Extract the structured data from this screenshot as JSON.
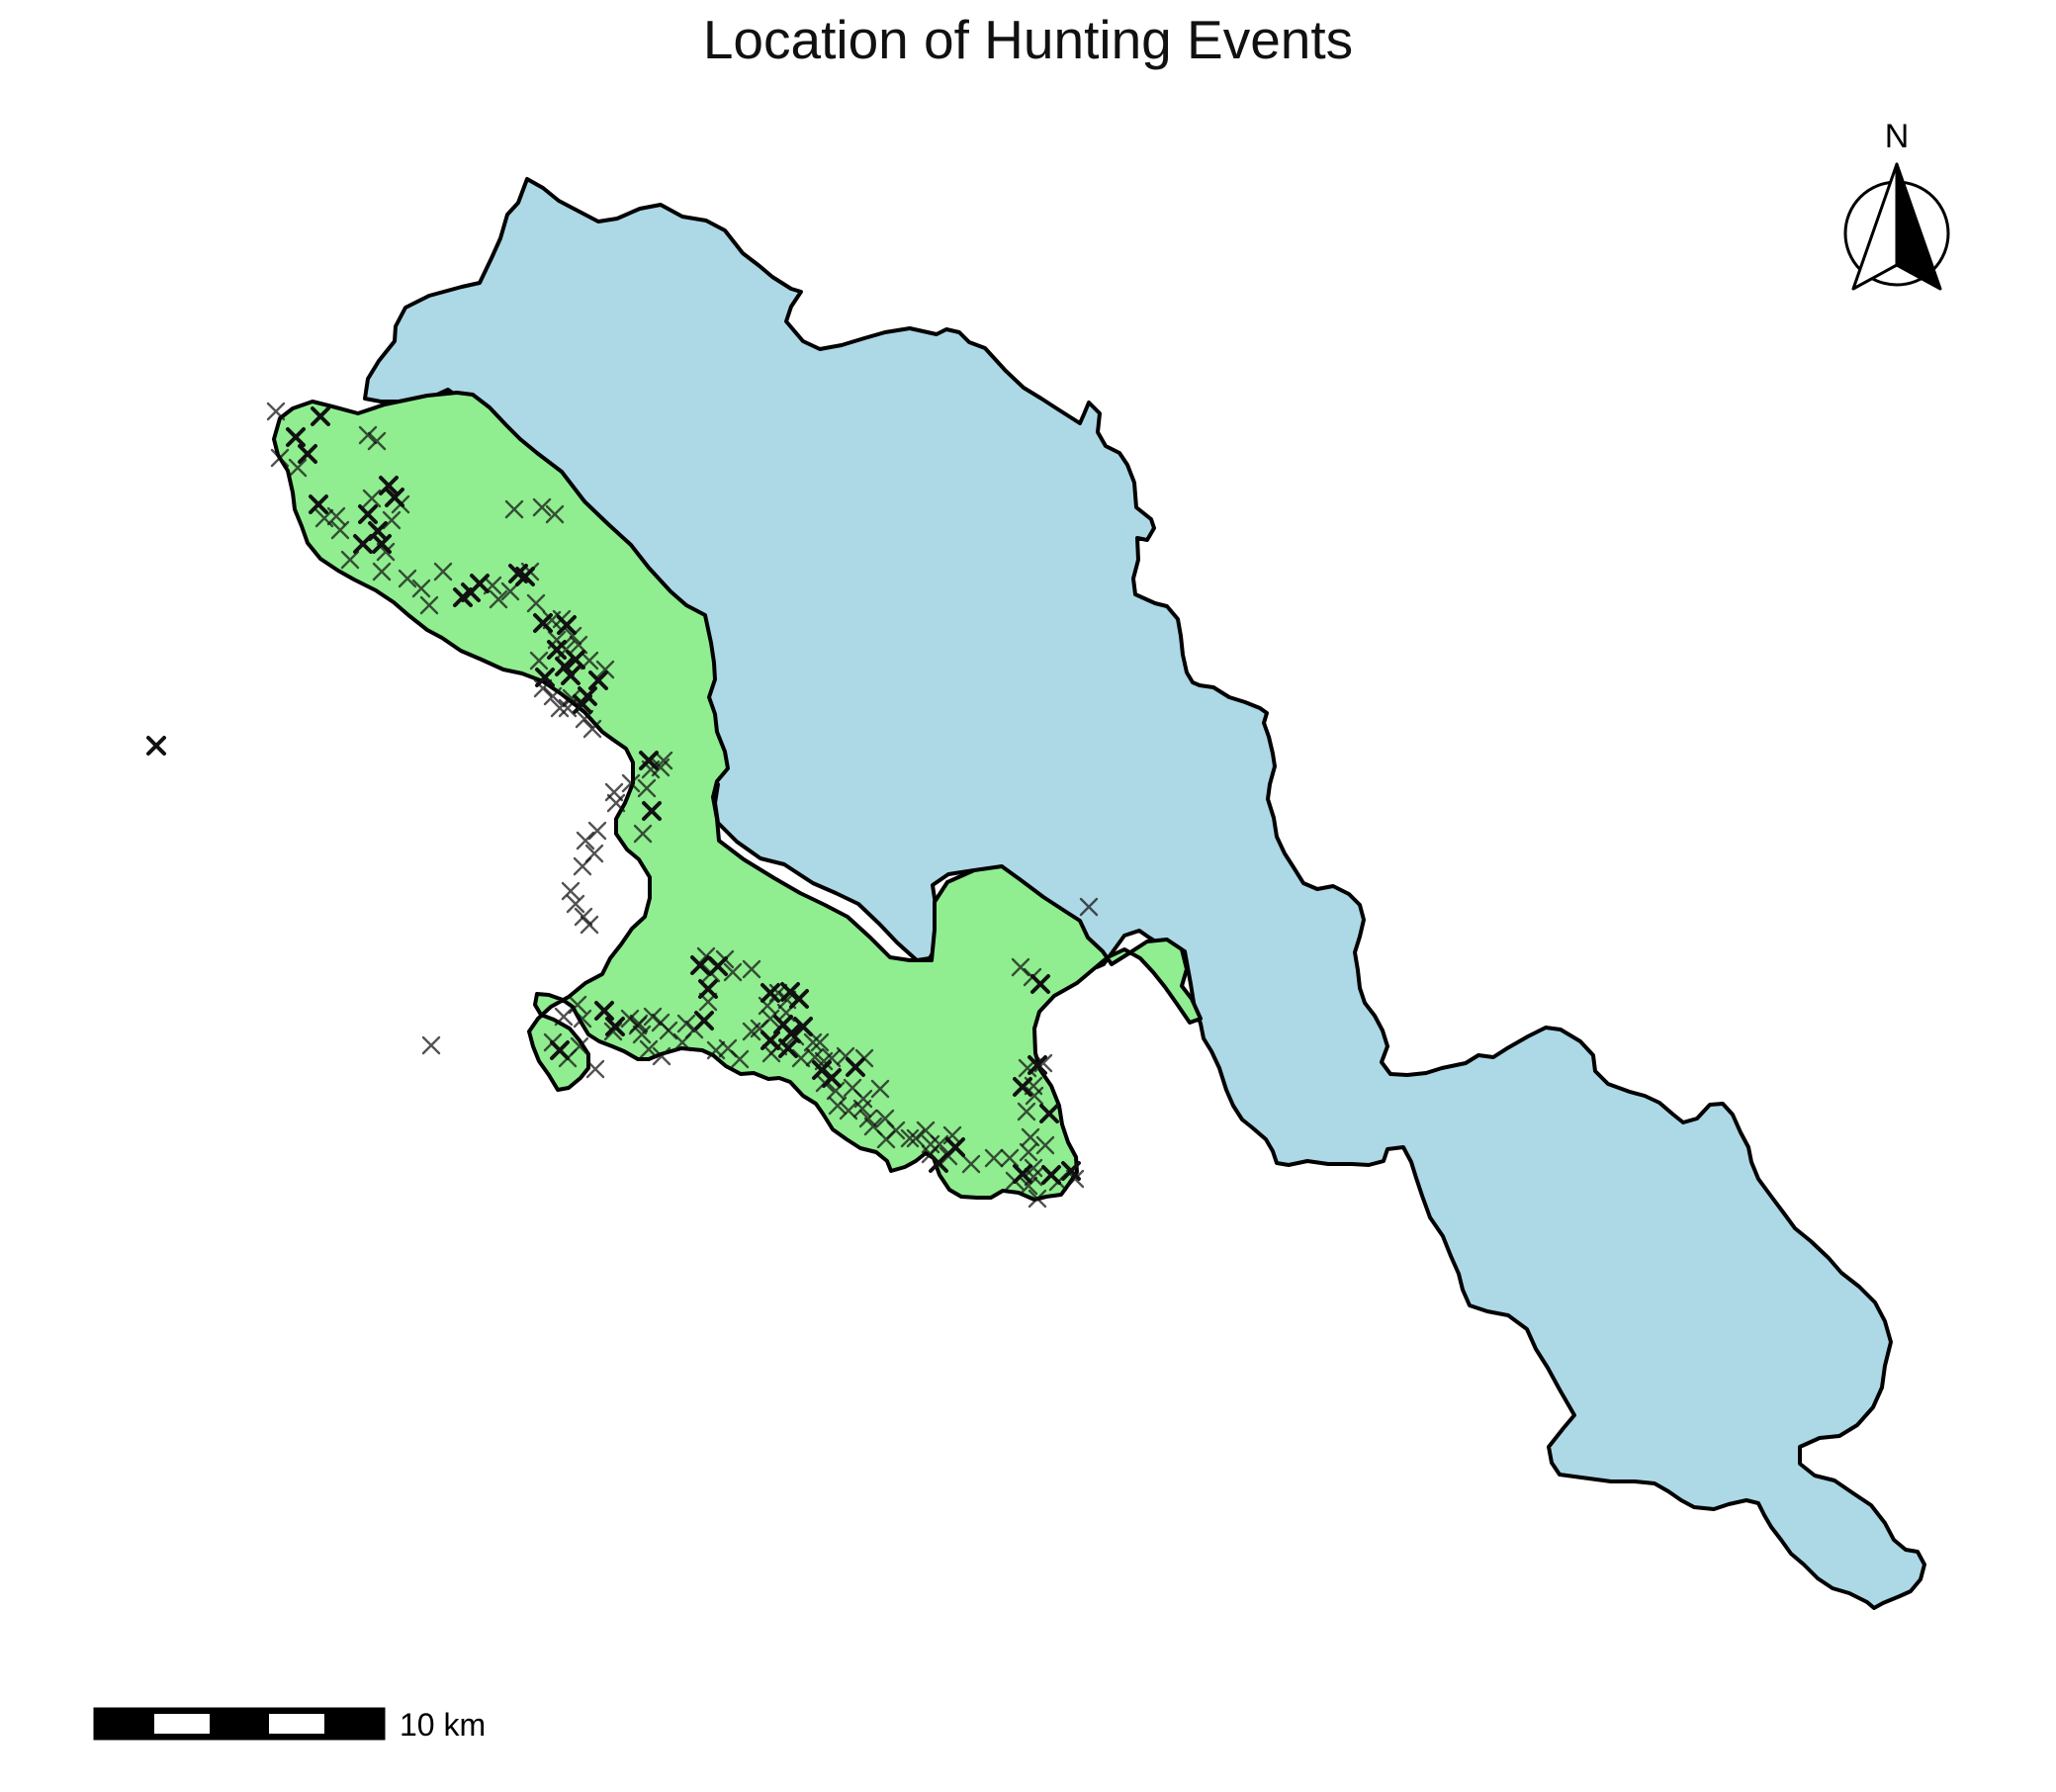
{
  "title": "Location of Hunting Events",
  "north_arrow": {
    "label": "N"
  },
  "scale_bar": {
    "label": "10 km",
    "segments": 5
  },
  "colors": {
    "area_blue": "#add8e6",
    "area_green": "#90ee90",
    "outline": "#000000",
    "marker": "#111111"
  },
  "markers": {
    "symbol": "x",
    "icon": "x-mark-icon"
  }
}
